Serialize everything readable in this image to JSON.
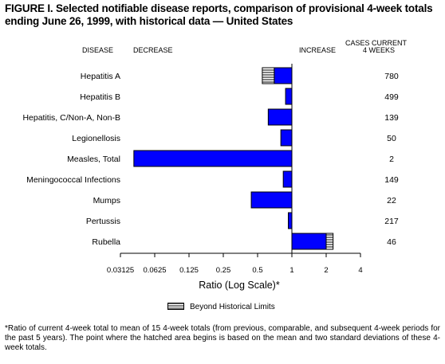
{
  "figure": {
    "title": "FIGURE I. Selected notifiable disease reports, comparison of provisional 4-week totals ending June 26, 1999, with historical data — United States",
    "headers": {
      "disease": "DISEASE",
      "decrease": "DECREASE",
      "increase": "INCREASE",
      "cases_line1": "CASES CURRENT",
      "cases_line2": "4 WEEKS"
    },
    "legend_label": "Beyond Historical Limits",
    "footnote": "*Ratio of current 4-week total to mean of 15 4-week totals (from previous, comparable, and subsequent 4-week periods for the past 5 years). The point where the hatched area begins is based on the mean and two standard deviations of these 4-week totals."
  },
  "chart_data": {
    "type": "bar",
    "orientation": "horizontal",
    "x_scale": "log2",
    "xlabel": "Ratio (Log Scale)*",
    "xlim": [
      0.03125,
      4
    ],
    "x_ticks": [
      "0.03125",
      "0.0625",
      "0.125",
      "0.25",
      "0.5",
      "1",
      "2",
      "4"
    ],
    "x_tick_values": [
      0.03125,
      0.0625,
      0.125,
      0.25,
      0.5,
      1,
      2,
      4
    ],
    "baseline": 1,
    "categories": [
      "Hepatitis A",
      "Hepatitis B",
      "Hepatitis, C/Non-A, Non-B",
      "Legionellosis",
      "Measles, Total",
      "Meningococcal Infections",
      "Mumps",
      "Pertussis",
      "Rubella"
    ],
    "values": [
      0.55,
      0.88,
      0.62,
      0.8,
      0.041,
      0.84,
      0.44,
      0.93,
      2.3
    ],
    "beyond_limits_start": [
      0.7,
      null,
      null,
      null,
      null,
      null,
      null,
      null,
      2.0
    ],
    "cases_current_4_weeks": [
      "780",
      "499",
      "139",
      "50",
      "2",
      "149",
      "22",
      "217",
      "46"
    ],
    "colors": {
      "bar": "#0000ff",
      "hatch": "#000000"
    }
  }
}
